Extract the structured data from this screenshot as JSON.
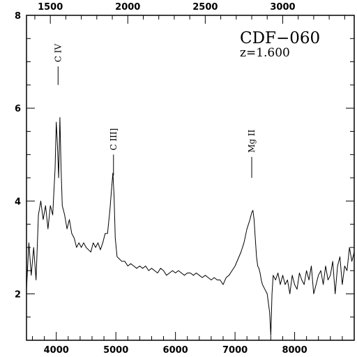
{
  "chart_data": {
    "type": "line",
    "object": {
      "name": "CDF−060",
      "redshift_label": "z=1.600",
      "z": 1.6
    },
    "xlabel": "",
    "ylabel": "",
    "xlim": [
      3500,
      9000
    ],
    "ylim": [
      1,
      8
    ],
    "top_xlim": [
      1346,
      3462
    ],
    "xticks": [
      "4000",
      "5000",
      "6000",
      "7000",
      "8000"
    ],
    "top_xticks": [
      "1500",
      "2000",
      "2500",
      "3000"
    ],
    "yticks": [
      "2",
      "4",
      "6",
      "8"
    ],
    "grid": false,
    "emission_lines": [
      {
        "label": "C IV",
        "x": 4030
      },
      {
        "label": "C III]",
        "x": 4960
      },
      {
        "label": "Mg II",
        "x": 7280
      }
    ],
    "series": [
      {
        "x": [
          3500,
          3540,
          3580,
          3620,
          3660,
          3700,
          3740,
          3780,
          3820,
          3860,
          3900,
          3940,
          3980,
          4000,
          4020,
          4040,
          4060,
          4080,
          4100,
          4140,
          4180,
          4220,
          4260,
          4300,
          4340,
          4380,
          4420,
          4460,
          4500,
          4540,
          4580,
          4620,
          4660,
          4700,
          4740,
          4780,
          4820,
          4860,
          4900,
          4930,
          4950,
          4970,
          4990,
          5020,
          5060,
          5100,
          5150,
          5200,
          5250,
          5300,
          5350,
          5400,
          5450,
          5500,
          5550,
          5600,
          5650,
          5700,
          5750,
          5800,
          5850,
          5900,
          5950,
          6000,
          6050,
          6100,
          6150,
          6200,
          6250,
          6300,
          6350,
          6400,
          6450,
          6500,
          6550,
          6600,
          6650,
          6700,
          6750,
          6800,
          6850,
          6900,
          6950,
          7000,
          7050,
          7100,
          7150,
          7200,
          7250,
          7280,
          7300,
          7320,
          7340,
          7360,
          7380,
          7400,
          7420,
          7440,
          7460,
          7500,
          7540,
          7580,
          7600,
          7620,
          7640,
          7680,
          7720,
          7760,
          7800,
          7840,
          7880,
          7920,
          7960,
          8000,
          8040,
          8080,
          8120,
          8160,
          8200,
          8240,
          8280,
          8320,
          8360,
          8400,
          8440,
          8480,
          8520,
          8560,
          8600,
          8640,
          8680,
          8720,
          8760,
          8800,
          8840,
          8880,
          8920,
          8960,
          9000
        ],
        "y": [
          2.1,
          3.1,
          2.4,
          3.0,
          2.3,
          3.7,
          4.0,
          3.6,
          3.9,
          3.4,
          3.9,
          3.7,
          4.7,
          5.7,
          5.2,
          4.5,
          5.8,
          4.7,
          3.9,
          3.7,
          3.4,
          3.6,
          3.3,
          3.2,
          3.0,
          3.1,
          3.0,
          3.1,
          3.0,
          2.95,
          2.9,
          3.1,
          3.0,
          3.1,
          2.95,
          3.1,
          3.3,
          3.3,
          3.8,
          4.3,
          4.6,
          4.1,
          3.2,
          2.8,
          2.75,
          2.7,
          2.7,
          2.6,
          2.65,
          2.6,
          2.55,
          2.6,
          2.55,
          2.6,
          2.5,
          2.55,
          2.5,
          2.45,
          2.55,
          2.5,
          2.4,
          2.45,
          2.5,
          2.45,
          2.5,
          2.45,
          2.4,
          2.45,
          2.45,
          2.4,
          2.45,
          2.4,
          2.35,
          2.4,
          2.35,
          2.3,
          2.35,
          2.3,
          2.3,
          2.2,
          2.35,
          2.4,
          2.5,
          2.6,
          2.75,
          2.9,
          3.1,
          3.4,
          3.6,
          3.75,
          3.8,
          3.6,
          3.2,
          2.8,
          2.6,
          2.55,
          2.45,
          2.3,
          2.2,
          2.1,
          2.0,
          1.6,
          1.1,
          2.0,
          2.4,
          2.3,
          2.45,
          2.2,
          2.4,
          2.2,
          2.3,
          2.0,
          2.4,
          2.2,
          2.1,
          2.45,
          2.3,
          2.2,
          2.5,
          2.3,
          2.6,
          2.0,
          2.2,
          2.4,
          2.5,
          2.2,
          2.6,
          2.3,
          2.4,
          2.7,
          2.0,
          2.6,
          2.8,
          2.2,
          2.6,
          2.5,
          3.0,
          2.7,
          2.9
        ]
      }
    ]
  }
}
